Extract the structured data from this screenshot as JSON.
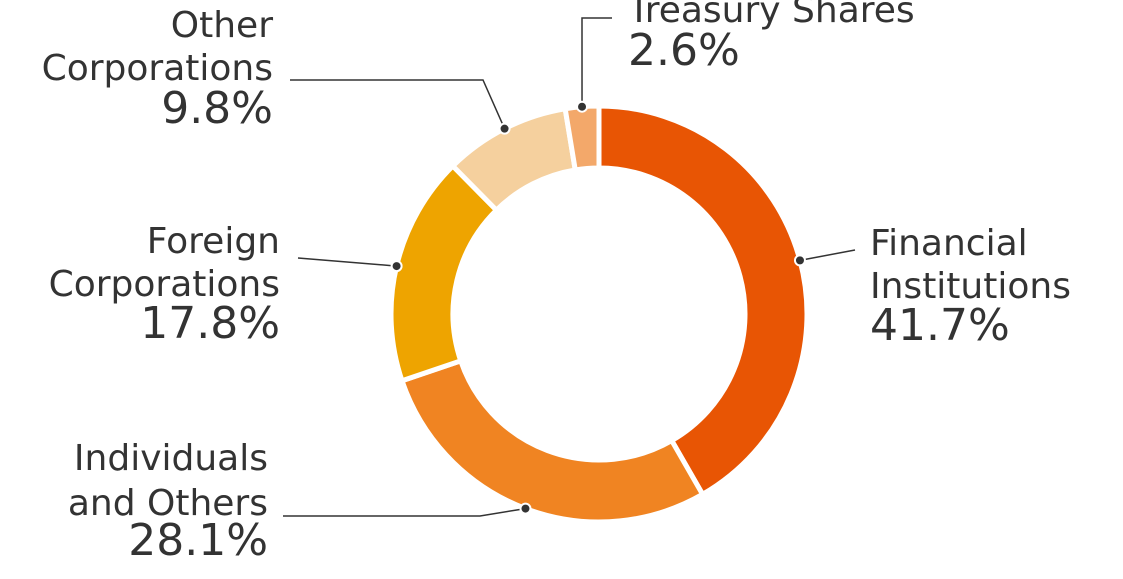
{
  "chart_data": {
    "type": "donut",
    "categories": [
      [
        "Financial",
        "Institutions"
      ],
      [
        "Individuals",
        "and Others"
      ],
      [
        "Foreign",
        "Corporations"
      ],
      [
        "Other",
        "Corporations"
      ],
      [
        "Treasury Shares"
      ]
    ],
    "values": [
      41.7,
      28.1,
      17.8,
      9.8,
      2.6
    ],
    "value_labels": [
      "41.7%",
      "28.1%",
      "17.8%",
      "9.8%",
      "2.6%"
    ],
    "colors": [
      "#e85504",
      "#f08422",
      "#eea400",
      "#f5d09e",
      "#f3a86a"
    ]
  }
}
